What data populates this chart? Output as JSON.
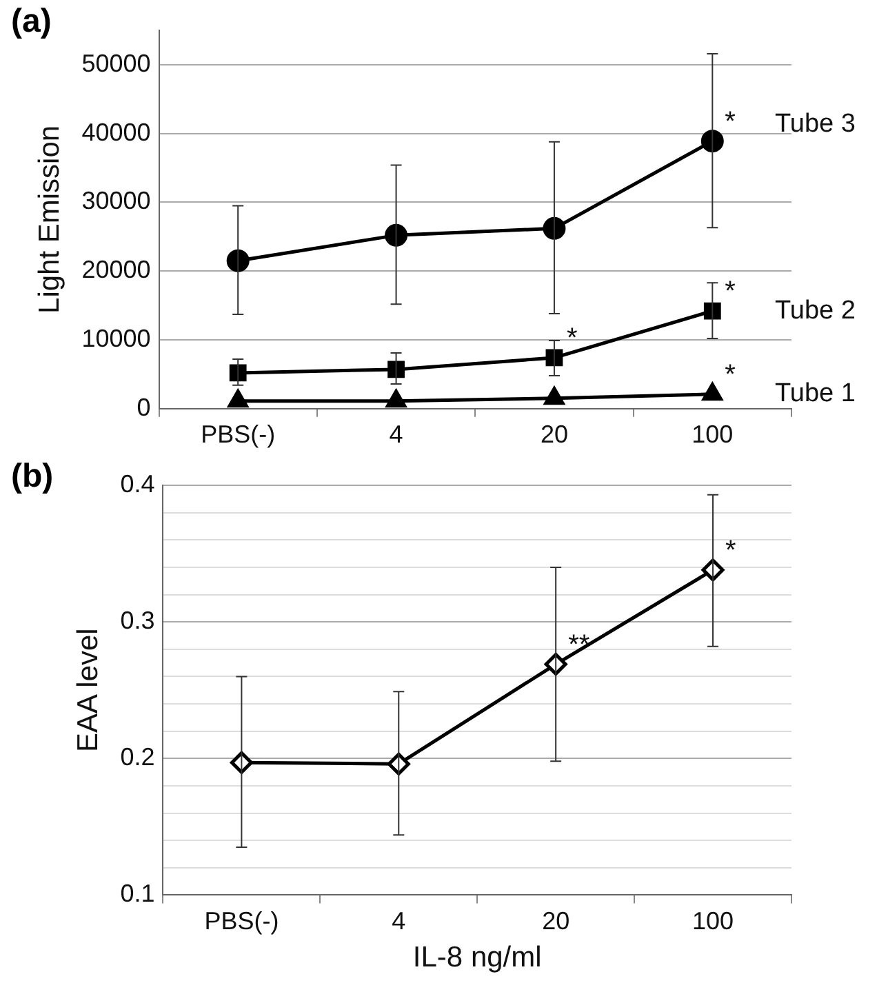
{
  "chart_data": [
    {
      "type": "line",
      "title": "(a)",
      "ylabel": "Light Emission",
      "categories": [
        "PBS(-)",
        "4",
        "20",
        "100"
      ],
      "series": [
        {
          "name": "Tube 3",
          "color": "#000000",
          "marker": "circle",
          "values": [
            21500,
            25200,
            26200,
            38900
          ],
          "errors": [
            [
              13700,
              29500
            ],
            [
              15200,
              35400
            ],
            [
              13800,
              38800
            ],
            [
              26300,
              51600
            ]
          ]
        },
        {
          "name": "Tube 2",
          "color": "#000000",
          "marker": "square",
          "values": [
            5200,
            5700,
            7400,
            14200
          ],
          "errors": [
            [
              3400,
              7200
            ],
            [
              3600,
              8100
            ],
            [
              4800,
              9900
            ],
            [
              10200,
              18300
            ]
          ]
        },
        {
          "name": "Tube 1",
          "color": "#000000",
          "marker": "triangle",
          "values": [
            1100,
            1100,
            1500,
            2100
          ]
        }
      ],
      "ylim": [
        0,
        55000
      ],
      "yticks": [
        0,
        10000,
        20000,
        30000,
        40000,
        50000
      ],
      "grid": "y",
      "legend": false,
      "annotations": [
        {
          "text": "*",
          "x": "100",
          "y": 38900
        },
        {
          "text": "*",
          "x": "20",
          "y": 7400
        },
        {
          "text": "*",
          "x": "100",
          "y": 14200
        },
        {
          "text": "*",
          "x": "100",
          "y": 2100
        }
      ]
    },
    {
      "type": "line",
      "title": "(b)",
      "ylabel": "EAA level",
      "xlabel": "IL-8 ng/ml",
      "categories": [
        "PBS(-)",
        "4",
        "20",
        "100"
      ],
      "series": [
        {
          "color": "#000000",
          "marker": "diamond",
          "values": [
            0.197,
            0.196,
            0.269,
            0.338
          ],
          "errors": [
            [
              0.135,
              0.26
            ],
            [
              0.144,
              0.249
            ],
            [
              0.198,
              0.34
            ],
            [
              0.282,
              0.393
            ]
          ]
        }
      ],
      "ylim": [
        0.1,
        0.4
      ],
      "yticks": [
        0.1,
        {
          "value": 0.12,
          "label": null
        },
        {
          "value": 0.14,
          "label": null
        },
        {
          "value": 0.16,
          "label": null
        },
        {
          "value": 0.18,
          "label": null
        },
        0.2,
        {
          "value": 0.22,
          "label": null
        },
        {
          "value": 0.24,
          "label": null
        },
        {
          "value": 0.26,
          "label": null
        },
        {
          "value": 0.28,
          "label": null
        },
        0.3,
        {
          "value": 0.32,
          "label": null
        },
        {
          "value": 0.34,
          "label": null
        },
        {
          "value": 0.36,
          "label": null
        },
        {
          "value": 0.38,
          "label": null
        },
        0.4
      ],
      "grid": "y",
      "legend": false,
      "annotations": [
        {
          "text": "**",
          "x": "20",
          "y": 0.269
        },
        {
          "text": "*",
          "x": "100",
          "y": 0.338
        }
      ]
    }
  ]
}
